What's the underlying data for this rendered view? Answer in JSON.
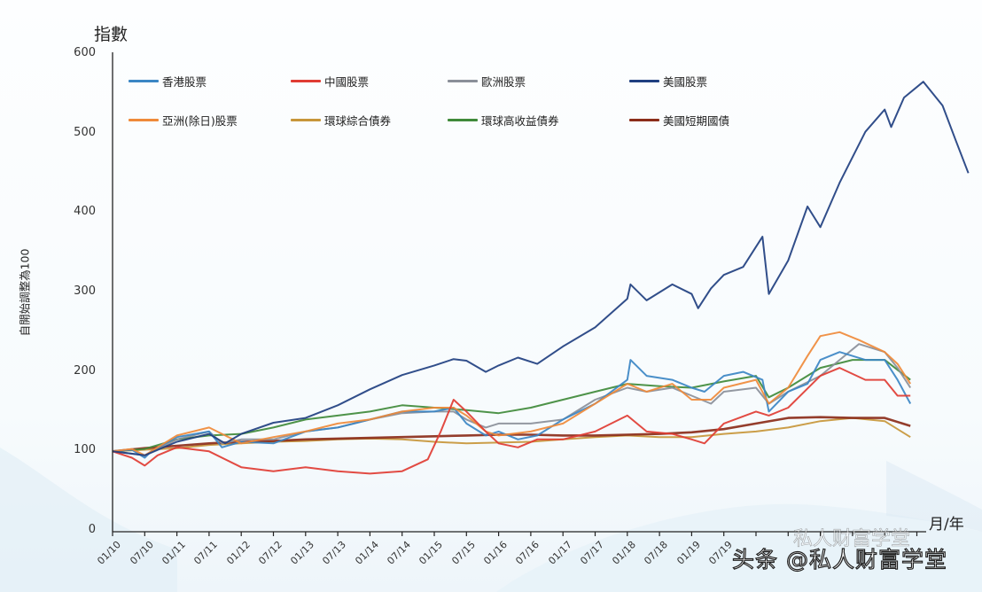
{
  "chart_data": {
    "type": "line",
    "title": "",
    "ylabel": "自開始調整為100",
    "y_title": "指數",
    "xlabel": "月/年",
    "ylim": [
      0,
      600
    ],
    "y_ticks": [
      0,
      100,
      200,
      300,
      400,
      500,
      600
    ],
    "x_ticks": [
      "01/10",
      "07/10",
      "01/11",
      "07/11",
      "01/12",
      "07/12",
      "01/13",
      "07/13",
      "01/14",
      "07/14",
      "01/15",
      "07/15",
      "01/16",
      "07/16",
      "01/17",
      "07/17",
      "01/18",
      "07/18",
      "01/19",
      "07/19"
    ],
    "grid": false,
    "legend_position": "top-left inside",
    "x_unit": "years since Jan 2010",
    "series": [
      {
        "name": "香港股票",
        "color": "#3b86c4",
        "x": [
          0,
          0.3,
          0.5,
          0.6,
          1,
          1.5,
          1.7,
          2,
          2.5,
          3,
          3.5,
          4,
          4.5,
          5,
          5.3,
          5.5,
          5.8,
          6,
          6.3,
          6.6,
          7,
          7.5,
          8,
          8.05,
          8.3,
          8.7,
          9,
          9.2,
          9.5,
          9.8,
          10.1,
          10.2,
          10.5,
          10.8,
          11,
          11.3,
          11.7,
          12,
          12.2,
          12.4
        ],
        "y": [
          100,
          102,
          92,
          100,
          118,
          125,
          105,
          112,
          110,
          125,
          130,
          140,
          150,
          150,
          155,
          135,
          120,
          125,
          115,
          120,
          140,
          160,
          190,
          215,
          195,
          190,
          180,
          175,
          195,
          200,
          190,
          150,
          175,
          185,
          215,
          225,
          215,
          215,
          190,
          160
        ]
      },
      {
        "name": "中國股票",
        "color": "#e03c33",
        "x": [
          0,
          0.3,
          0.5,
          0.7,
          1,
          1.5,
          2,
          2.5,
          3,
          3.5,
          4,
          4.5,
          4.9,
          5.1,
          5.3,
          5.5,
          5.8,
          6,
          6.3,
          6.6,
          7,
          7.5,
          8,
          8.3,
          8.7,
          9,
          9.2,
          9.5,
          10,
          10.2,
          10.5,
          11,
          11.3,
          11.7,
          12,
          12.2,
          12.4
        ],
        "y": [
          100,
          92,
          82,
          95,
          105,
          100,
          80,
          75,
          80,
          75,
          72,
          75,
          90,
          125,
          165,
          150,
          125,
          110,
          105,
          115,
          115,
          125,
          145,
          125,
          122,
          115,
          110,
          135,
          150,
          145,
          155,
          195,
          205,
          190,
          190,
          170,
          170
        ]
      },
      {
        "name": "歐洲股票",
        "color": "#8a8f99",
        "x": [
          0,
          0.5,
          1,
          1.5,
          1.7,
          2,
          2.5,
          3,
          3.5,
          4,
          4.5,
          5,
          5.3,
          5.5,
          5.8,
          6,
          6.5,
          7,
          7.5,
          8,
          8.3,
          8.7,
          9,
          9.3,
          9.5,
          10,
          10.2,
          10.5,
          11,
          11.3,
          11.6,
          12,
          12.2,
          12.4
        ],
        "y": [
          100,
          95,
          115,
          125,
          110,
          115,
          115,
          125,
          130,
          140,
          148,
          150,
          150,
          140,
          130,
          135,
          135,
          140,
          165,
          180,
          175,
          180,
          170,
          160,
          175,
          180,
          160,
          175,
          195,
          215,
          235,
          225,
          205,
          180
        ]
      },
      {
        "name": "美國股票",
        "color": "#1f3f80",
        "x": [
          0,
          0.5,
          1,
          1.5,
          1.75,
          2,
          2.5,
          3,
          3.5,
          4,
          4.5,
          5,
          5.3,
          5.5,
          5.8,
          6,
          6.3,
          6.6,
          7,
          7.5,
          8,
          8.05,
          8.3,
          8.7,
          9,
          9.1,
          9.3,
          9.5,
          9.8,
          10.1,
          10.2,
          10.5,
          10.8,
          11,
          11.3,
          11.7,
          12,
          12.1,
          12.3,
          12.6,
          12.9,
          13.1,
          13.3
        ],
        "y": [
          100,
          95,
          112,
          122,
          110,
          122,
          136,
          142,
          158,
          178,
          196,
          208,
          216,
          214,
          200,
          208,
          218,
          210,
          232,
          256,
          292,
          310,
          290,
          310,
          298,
          280,
          305,
          322,
          332,
          370,
          298,
          340,
          408,
          382,
          438,
          502,
          530,
          508,
          545,
          565,
          535,
          492,
          450
        ]
      },
      {
        "name": "亞洲(除日)股票",
        "color": "#ef8a3a",
        "x": [
          0,
          0.3,
          0.5,
          1,
          1.5,
          2,
          2.5,
          3,
          3.5,
          4,
          4.5,
          5,
          5.3,
          5.5,
          5.8,
          6,
          6.5,
          7,
          7.5,
          8,
          8.3,
          8.7,
          9,
          9.3,
          9.5,
          10,
          10.2,
          10.5,
          10.8,
          11,
          11.3,
          11.6,
          12,
          12.2,
          12.4
        ],
        "y": [
          100,
          103,
          95,
          120,
          130,
          110,
          118,
          125,
          135,
          140,
          150,
          155,
          155,
          145,
          125,
          120,
          125,
          135,
          160,
          185,
          175,
          185,
          165,
          165,
          180,
          190,
          160,
          180,
          220,
          245,
          250,
          240,
          225,
          210,
          185
        ]
      },
      {
        "name": "環球綜合債券",
        "color": "#c7963a",
        "x": [
          0,
          0.5,
          1,
          1.5,
          2,
          2.5,
          3,
          3.5,
          4,
          4.5,
          5,
          5.5,
          6,
          6.5,
          7,
          7.5,
          8,
          8.5,
          9,
          9.5,
          10,
          10.5,
          11,
          11.5,
          12,
          12.4
        ],
        "y": [
          100,
          102,
          104,
          108,
          110,
          112,
          113,
          115,
          116,
          115,
          112,
          110,
          111,
          112,
          115,
          118,
          120,
          118,
          118,
          122,
          125,
          130,
          138,
          142,
          138,
          118
        ]
      },
      {
        "name": "環球高收益債券",
        "color": "#3f8a3a",
        "x": [
          0,
          0.5,
          1,
          1.5,
          2,
          2.5,
          3,
          3.5,
          4,
          4.5,
          5,
          5.5,
          6,
          6.5,
          7,
          7.5,
          8,
          8.5,
          9,
          9.5,
          10,
          10.2,
          10.5,
          11,
          11.5,
          12,
          12.4
        ],
        "y": [
          100,
          103,
          115,
          120,
          122,
          130,
          140,
          145,
          150,
          158,
          155,
          152,
          148,
          155,
          165,
          175,
          185,
          182,
          180,
          188,
          195,
          168,
          180,
          205,
          215,
          215,
          190
        ]
      },
      {
        "name": "美國短期國債",
        "color": "#8b2d1a",
        "x": [
          0,
          0.5,
          1,
          1.5,
          2,
          2.5,
          3,
          3.5,
          4,
          4.5,
          5,
          5.5,
          6,
          6.5,
          7,
          7.5,
          8,
          8.5,
          9,
          9.5,
          10,
          10.5,
          11,
          11.5,
          12,
          12.4
        ],
        "y": [
          100,
          104,
          107,
          110,
          112,
          113,
          115,
          116,
          117,
          118,
          119,
          120,
          121,
          121,
          120,
          120,
          121,
          122,
          124,
          128,
          135,
          142,
          143,
          142,
          142,
          132
        ]
      }
    ]
  },
  "legend": [
    {
      "label": "香港股票",
      "color": "#3b86c4"
    },
    {
      "label": "中國股票",
      "color": "#e03c33"
    },
    {
      "label": "歐洲股票",
      "color": "#8a8f99"
    },
    {
      "label": "美國股票",
      "color": "#1f3f80"
    },
    {
      "label": "亞洲(除日)股票",
      "color": "#ef8a3a"
    },
    {
      "label": "環球綜合債券",
      "color": "#c7963a"
    },
    {
      "label": "環球高收益債券",
      "color": "#3f8a3a"
    },
    {
      "label": "美國短期國債",
      "color": "#8b2d1a"
    }
  ],
  "axis": {
    "y_title": "指數",
    "y_label": "自開始調整為100",
    "x_unit": "月/年",
    "y_ticks": [
      "0",
      "100",
      "200",
      "300",
      "400",
      "500",
      "600"
    ],
    "x_ticks": [
      "01/10",
      "07/10",
      "01/11",
      "07/11",
      "01/12",
      "07/12",
      "01/13",
      "07/13",
      "01/14",
      "07/14",
      "01/15",
      "07/15",
      "01/16",
      "07/16",
      "01/17",
      "07/17",
      "01/18",
      "07/18",
      "01/19",
      "07/19"
    ]
  },
  "watermark": {
    "text": "头条 @私人财富学堂",
    "faint_text": "私人财富学堂"
  }
}
